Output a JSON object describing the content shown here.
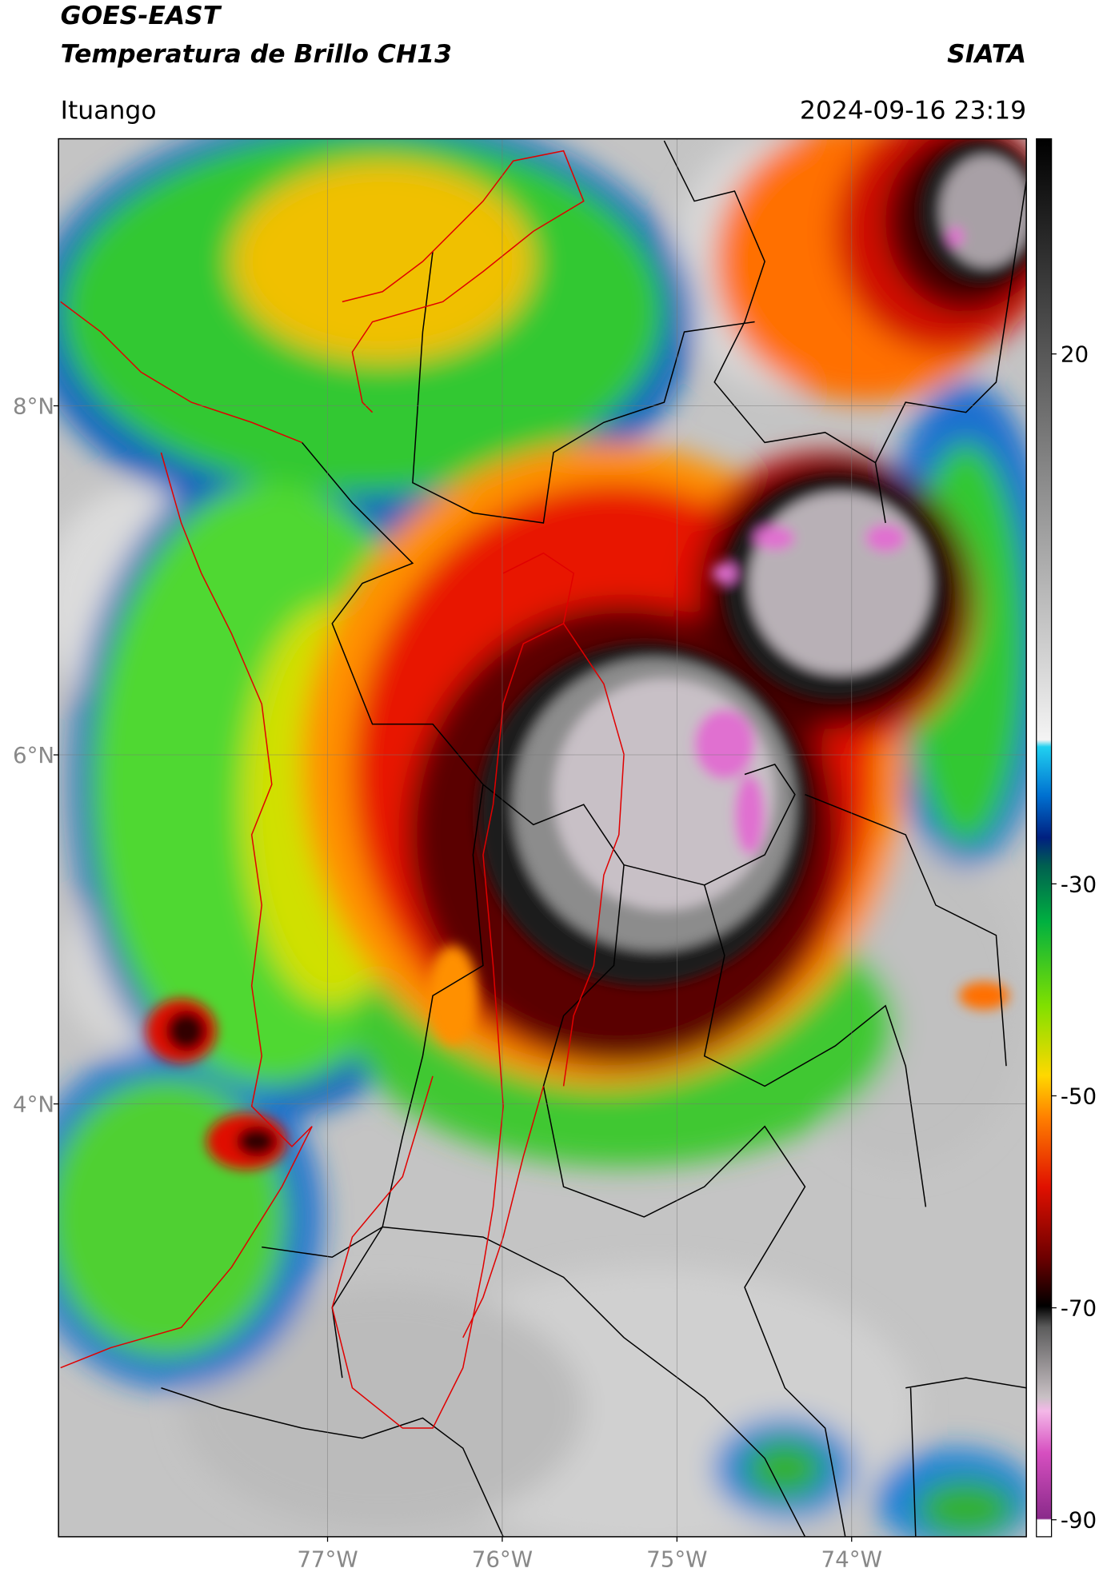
{
  "header": {
    "title": "GOES-EAST",
    "subtitle": "Temperatura de Brillo CH13",
    "credit": "SIATA",
    "location": "Ituango",
    "datetime": "2024-09-16 23:19"
  },
  "map": {
    "latlim": [
      1.52,
      9.53
    ],
    "lonlim": [
      -78.54,
      -73.0
    ],
    "grid": true,
    "lat_ticks": [
      {
        "value": 8,
        "label": "8°N"
      },
      {
        "value": 6,
        "label": "6°N"
      },
      {
        "value": 4,
        "label": "4°N"
      }
    ],
    "lon_ticks": [
      {
        "value": -77,
        "label": "77°W"
      },
      {
        "value": -76,
        "label": "76°W"
      },
      {
        "value": -75,
        "label": "75°W"
      },
      {
        "value": -74,
        "label": "74°W"
      }
    ]
  },
  "colorbar": {
    "lim": [
      -91.6,
      40.3
    ],
    "ticks": [
      20,
      -30,
      -50,
      -70,
      -90
    ]
  }
}
